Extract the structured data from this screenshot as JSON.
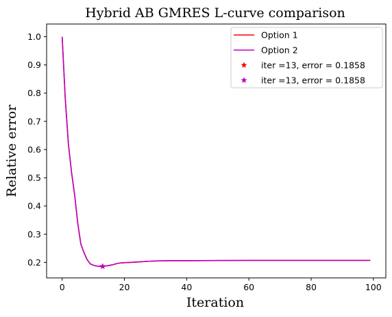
{
  "chart_data": {
    "type": "line",
    "title": "Hybrid AB GMRES L-curve comparison",
    "xlabel": "Iteration",
    "ylabel": "Relative error",
    "xlim": [
      -5,
      104
    ],
    "ylim": [
      0.145,
      1.045
    ],
    "xticks": [
      0,
      20,
      40,
      60,
      80,
      100
    ],
    "yticks": [
      0.2,
      0.3,
      0.4,
      0.5,
      0.6,
      0.7,
      0.8,
      0.9,
      1.0
    ],
    "xtick_labels": [
      "0",
      "20",
      "40",
      "60",
      "80",
      "100"
    ],
    "ytick_labels": [
      "0.2",
      "0.3",
      "0.4",
      "0.5",
      "0.6",
      "0.7",
      "0.8",
      "0.9",
      "1.0"
    ],
    "grid": false,
    "legend_position": "top-right",
    "series": [
      {
        "name": "Option 1",
        "color": "#ff0000",
        "x": [
          0,
          1,
          2,
          3,
          4,
          5,
          6,
          7,
          8,
          9,
          10,
          11,
          12,
          13,
          14,
          15,
          16,
          17,
          18,
          19,
          20,
          22,
          25,
          28,
          30,
          35,
          40,
          50,
          60,
          70,
          80,
          90,
          99
        ],
        "y": [
          1.0,
          0.78,
          0.62,
          0.52,
          0.44,
          0.34,
          0.265,
          0.235,
          0.21,
          0.195,
          0.19,
          0.187,
          0.186,
          0.1858,
          0.187,
          0.189,
          0.191,
          0.194,
          0.197,
          0.198,
          0.199,
          0.2,
          0.202,
          0.204,
          0.205,
          0.206,
          0.206,
          0.2065,
          0.207,
          0.207,
          0.207,
          0.207,
          0.207
        ]
      },
      {
        "name": "Option 2",
        "color": "#bf00bf",
        "x": [
          0,
          1,
          2,
          3,
          4,
          5,
          6,
          7,
          8,
          9,
          10,
          11,
          12,
          13,
          14,
          15,
          16,
          17,
          18,
          19,
          20,
          22,
          25,
          28,
          30,
          35,
          40,
          50,
          60,
          70,
          80,
          90,
          99
        ],
        "y": [
          1.0,
          0.78,
          0.62,
          0.52,
          0.44,
          0.34,
          0.265,
          0.235,
          0.21,
          0.195,
          0.19,
          0.187,
          0.186,
          0.1858,
          0.187,
          0.189,
          0.191,
          0.194,
          0.197,
          0.198,
          0.199,
          0.2,
          0.202,
          0.204,
          0.205,
          0.206,
          0.206,
          0.2065,
          0.207,
          0.207,
          0.207,
          0.207,
          0.207
        ]
      }
    ],
    "markers": [
      {
        "name": "iter =13, error = 0.1858",
        "color": "#ff0000",
        "x": 13,
        "y": 0.1858
      },
      {
        "name": "iter =13, error = 0.1858",
        "color": "#bf00bf",
        "x": 13,
        "y": 0.1858
      }
    ]
  }
}
